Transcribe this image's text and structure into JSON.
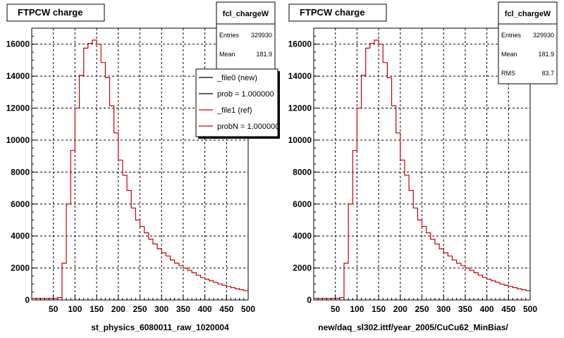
{
  "chart_data": [
    {
      "type": "histogram",
      "title": "FTPCW charge",
      "xlabel": "st_physics_6080011_raw_1020004",
      "ylabel": "",
      "xlim": [
        0,
        500
      ],
      "ylim": [
        0,
        17000
      ],
      "x_ticks": [
        50,
        100,
        150,
        200,
        250,
        300,
        350,
        400,
        450,
        500
      ],
      "y_ticks": [
        0,
        2000,
        4000,
        6000,
        8000,
        10000,
        12000,
        14000,
        16000
      ],
      "grid": true,
      "stats": {
        "name": "fcl_chargeW",
        "entries_label": "Entries",
        "entries": "329930",
        "mean_label": "Mean",
        "mean": "181.9"
      },
      "legend": {
        "position": "top-right",
        "entries": [
          {
            "label": "_file0 (new)",
            "color": "#000000"
          },
          {
            "label": "prob = 1.000000",
            "color": "#000000"
          },
          {
            "label": "_file1 (ref)",
            "color": "#cc0000"
          },
          {
            "label": "probN = 1.000000",
            "color": "#cc0000"
          }
        ]
      },
      "series": [
        {
          "color": "#cc0000",
          "bin_edges": [
            0,
            10,
            20,
            30,
            40,
            50,
            60,
            70,
            80,
            90,
            100,
            110,
            120,
            130,
            140,
            150,
            160,
            170,
            180,
            190,
            200,
            210,
            220,
            230,
            240,
            250,
            260,
            270,
            280,
            290,
            300,
            310,
            320,
            330,
            340,
            350,
            360,
            370,
            380,
            390,
            400,
            410,
            420,
            430,
            440,
            450,
            460,
            470,
            480,
            490,
            500
          ],
          "values": [
            100,
            100,
            100,
            100,
            100,
            100,
            150,
            2300,
            6000,
            9350,
            12000,
            14050,
            15750,
            16050,
            16250,
            16000,
            14850,
            13900,
            12150,
            10450,
            8750,
            7800,
            6850,
            5750,
            5000,
            4600,
            4200,
            3800,
            3500,
            3200,
            2950,
            2750,
            2500,
            2300,
            2150,
            2000,
            1850,
            1700,
            1550,
            1400,
            1300,
            1200,
            1100,
            1000,
            920,
            850,
            770,
            700,
            640,
            580
          ]
        }
      ]
    },
    {
      "type": "histogram",
      "title": "FTPCW charge",
      "xlabel": "new/daq_sl302.ittf/year_2005/CuCu62_MinBias/",
      "ylabel": "",
      "xlim": [
        0,
        500
      ],
      "ylim": [
        0,
        17000
      ],
      "x_ticks": [
        50,
        100,
        150,
        200,
        250,
        300,
        350,
        400,
        450,
        500
      ],
      "y_ticks": [
        0,
        2000,
        4000,
        6000,
        8000,
        10000,
        12000,
        14000,
        16000
      ],
      "grid": true,
      "stats": {
        "name": "fcl_chargeW",
        "entries_label": "Entries",
        "entries": "329930",
        "mean_label": "Mean",
        "mean": "181.9",
        "rms_label": "RMS",
        "rms": "83.7"
      },
      "series": [
        {
          "color": "#cc0000",
          "bin_edges": [
            0,
            10,
            20,
            30,
            40,
            50,
            60,
            70,
            80,
            90,
            100,
            110,
            120,
            130,
            140,
            150,
            160,
            170,
            180,
            190,
            200,
            210,
            220,
            230,
            240,
            250,
            260,
            270,
            280,
            290,
            300,
            310,
            320,
            330,
            340,
            350,
            360,
            370,
            380,
            390,
            400,
            410,
            420,
            430,
            440,
            450,
            460,
            470,
            480,
            490,
            500
          ],
          "values": [
            100,
            100,
            100,
            100,
            100,
            100,
            150,
            2300,
            6000,
            9350,
            12000,
            14050,
            15750,
            16050,
            16250,
            16000,
            14850,
            13900,
            12150,
            10450,
            8750,
            7800,
            6850,
            5750,
            5000,
            4600,
            4200,
            3800,
            3500,
            3200,
            2950,
            2750,
            2500,
            2300,
            2150,
            2000,
            1850,
            1700,
            1550,
            1400,
            1300,
            1200,
            1100,
            1000,
            920,
            850,
            770,
            700,
            640,
            580
          ]
        }
      ]
    }
  ]
}
